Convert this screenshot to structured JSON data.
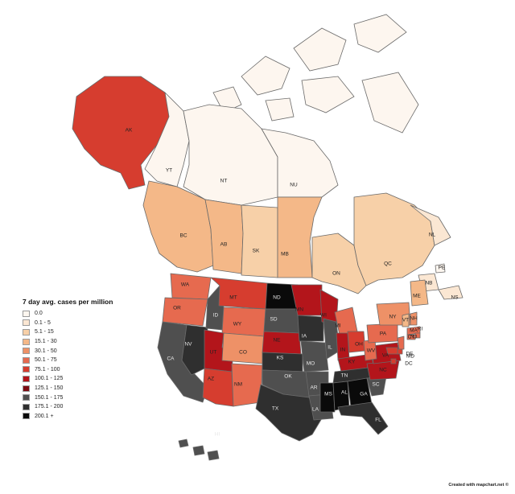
{
  "map": {
    "title": "7 day avg. cases per million",
    "credit": "Created with mapchart.net ©",
    "legend": [
      {
        "label": "0.0",
        "color": "#fdf6ef"
      },
      {
        "label": "0.1 - 5",
        "color": "#fbe7d3"
      },
      {
        "label": "5.1 - 15",
        "color": "#f7d0a8"
      },
      {
        "label": "15.1 - 30",
        "color": "#f4b888"
      },
      {
        "label": "30.1 - 50",
        "color": "#ee9167"
      },
      {
        "label": "50.1 - 75",
        "color": "#e66a4f"
      },
      {
        "label": "75.1 - 100",
        "color": "#d63d2f"
      },
      {
        "label": "100.1 - 125",
        "color": "#b3151b"
      },
      {
        "label": "125.1 - 150",
        "color": "#7d0b12"
      },
      {
        "label": "150.1 - 175",
        "color": "#4f4f4f"
      },
      {
        "label": "175.1 - 200",
        "color": "#2f2f2f"
      },
      {
        "label": "200.1 +",
        "color": "#0a0a0a"
      }
    ],
    "regions": [
      {
        "id": "AK",
        "label": "AK",
        "bin": 6
      },
      {
        "id": "YT",
        "label": "YT",
        "bin": 0
      },
      {
        "id": "NT",
        "label": "NT",
        "bin": 0
      },
      {
        "id": "NU",
        "label": "NU",
        "bin": 0
      },
      {
        "id": "BC",
        "label": "BC",
        "bin": 3
      },
      {
        "id": "AB",
        "label": "AB",
        "bin": 3
      },
      {
        "id": "SK",
        "label": "SK",
        "bin": 2
      },
      {
        "id": "MB",
        "label": "MB",
        "bin": 3
      },
      {
        "id": "ON",
        "label": "ON",
        "bin": 2
      },
      {
        "id": "QC",
        "label": "QC",
        "bin": 2
      },
      {
        "id": "NL",
        "label": "NL",
        "bin": 1
      },
      {
        "id": "NB",
        "label": "NB",
        "bin": 1
      },
      {
        "id": "NS",
        "label": "NS",
        "bin": 1
      },
      {
        "id": "PE",
        "label": "PE",
        "bin": 0
      },
      {
        "id": "WA",
        "label": "WA",
        "bin": 5
      },
      {
        "id": "OR",
        "label": "OR",
        "bin": 5
      },
      {
        "id": "CA",
        "label": "CA",
        "bin": 9
      },
      {
        "id": "NV",
        "label": "NV",
        "bin": 10
      },
      {
        "id": "ID",
        "label": "ID",
        "bin": 9
      },
      {
        "id": "MT",
        "label": "MT",
        "bin": 6
      },
      {
        "id": "WY",
        "label": "WY",
        "bin": 5
      },
      {
        "id": "UT",
        "label": "UT",
        "bin": 7
      },
      {
        "id": "AZ",
        "label": "AZ",
        "bin": 6
      },
      {
        "id": "CO",
        "label": "CO",
        "bin": 4
      },
      {
        "id": "NM",
        "label": "NM",
        "bin": 5
      },
      {
        "id": "ND",
        "label": "ND",
        "bin": 11
      },
      {
        "id": "SD",
        "label": "SD",
        "bin": 9
      },
      {
        "id": "NE",
        "label": "NE",
        "bin": 7
      },
      {
        "id": "KS",
        "label": "KS",
        "bin": 10
      },
      {
        "id": "OK",
        "label": "OK",
        "bin": 9
      },
      {
        "id": "TX",
        "label": "TX",
        "bin": 10
      },
      {
        "id": "MN",
        "label": "MN",
        "bin": 7
      },
      {
        "id": "IA",
        "label": "IA",
        "bin": 10
      },
      {
        "id": "MO",
        "label": "MO",
        "bin": 9
      },
      {
        "id": "AR",
        "label": "AR",
        "bin": 9
      },
      {
        "id": "LA",
        "label": "LA",
        "bin": 9
      },
      {
        "id": "WI",
        "label": "WI",
        "bin": 7
      },
      {
        "id": "IL",
        "label": "IL",
        "bin": 9
      },
      {
        "id": "MI",
        "label": "MI",
        "bin": 5
      },
      {
        "id": "IN",
        "label": "IN",
        "bin": 7
      },
      {
        "id": "OH",
        "label": "OH",
        "bin": 6
      },
      {
        "id": "KY",
        "label": "KY",
        "bin": 7
      },
      {
        "id": "TN",
        "label": "TN",
        "bin": 10
      },
      {
        "id": "MS",
        "label": "MS",
        "bin": 11
      },
      {
        "id": "AL",
        "label": "AL",
        "bin": 11
      },
      {
        "id": "GA",
        "label": "GA",
        "bin": 11
      },
      {
        "id": "FL",
        "label": "FL",
        "bin": 10
      },
      {
        "id": "SC",
        "label": "SC",
        "bin": 9
      },
      {
        "id": "NC",
        "label": "NC",
        "bin": 7
      },
      {
        "id": "VA",
        "label": "VA",
        "bin": 7
      },
      {
        "id": "WV",
        "label": "WV",
        "bin": 5
      },
      {
        "id": "PA",
        "label": "PA",
        "bin": 5
      },
      {
        "id": "NY",
        "label": "NY",
        "bin": 4
      },
      {
        "id": "ME",
        "label": "ME",
        "bin": 3
      },
      {
        "id": "VT",
        "label": "VT",
        "bin": 3
      },
      {
        "id": "NH",
        "label": "NH",
        "bin": 4
      },
      {
        "id": "MA",
        "label": "MA",
        "bin": 5
      },
      {
        "id": "RI",
        "label": "RI",
        "bin": 5
      },
      {
        "id": "CT",
        "label": "CT",
        "bin": 5
      },
      {
        "id": "NJ",
        "label": "NJ",
        "bin": 5
      },
      {
        "id": "DE",
        "label": "DE",
        "bin": 6
      },
      {
        "id": "MD",
        "label": "MD",
        "bin": 6
      },
      {
        "id": "DC",
        "label": "DC",
        "bin": 6
      },
      {
        "id": "HI",
        "label": "HI",
        "bin": 9
      }
    ]
  }
}
